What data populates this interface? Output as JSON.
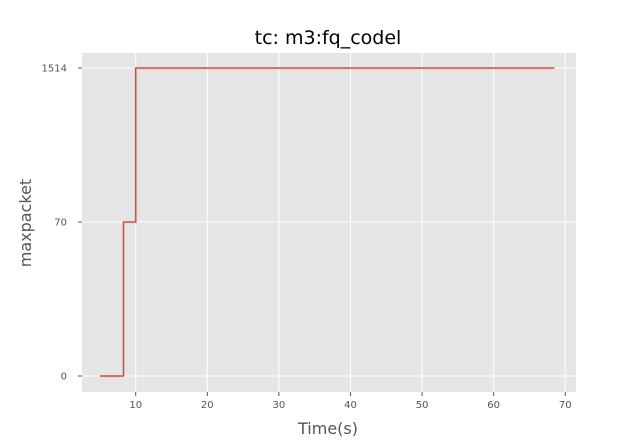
{
  "chart_data": {
    "type": "line",
    "title": "tc: m3:fq_codel",
    "xlabel": "Time(s)",
    "ylabel": "maxpacket",
    "x_ticks": [
      10,
      20,
      30,
      40,
      50,
      60,
      70
    ],
    "y_ticks": [
      "0",
      "70",
      "1514"
    ],
    "y_scale": "categorical",
    "xlim": [
      2.5,
      71.5
    ],
    "grid": true,
    "step": "post",
    "series": [
      {
        "color": "#E24A33",
        "points": [
          {
            "x": 5.0,
            "y": "0"
          },
          {
            "x": 8.3,
            "y": "0"
          },
          {
            "x": 8.3,
            "y": "70"
          },
          {
            "x": 10.0,
            "y": "70"
          },
          {
            "x": 10.0,
            "y": "1514"
          },
          {
            "x": 68.5,
            "y": "1514"
          }
        ]
      }
    ]
  }
}
